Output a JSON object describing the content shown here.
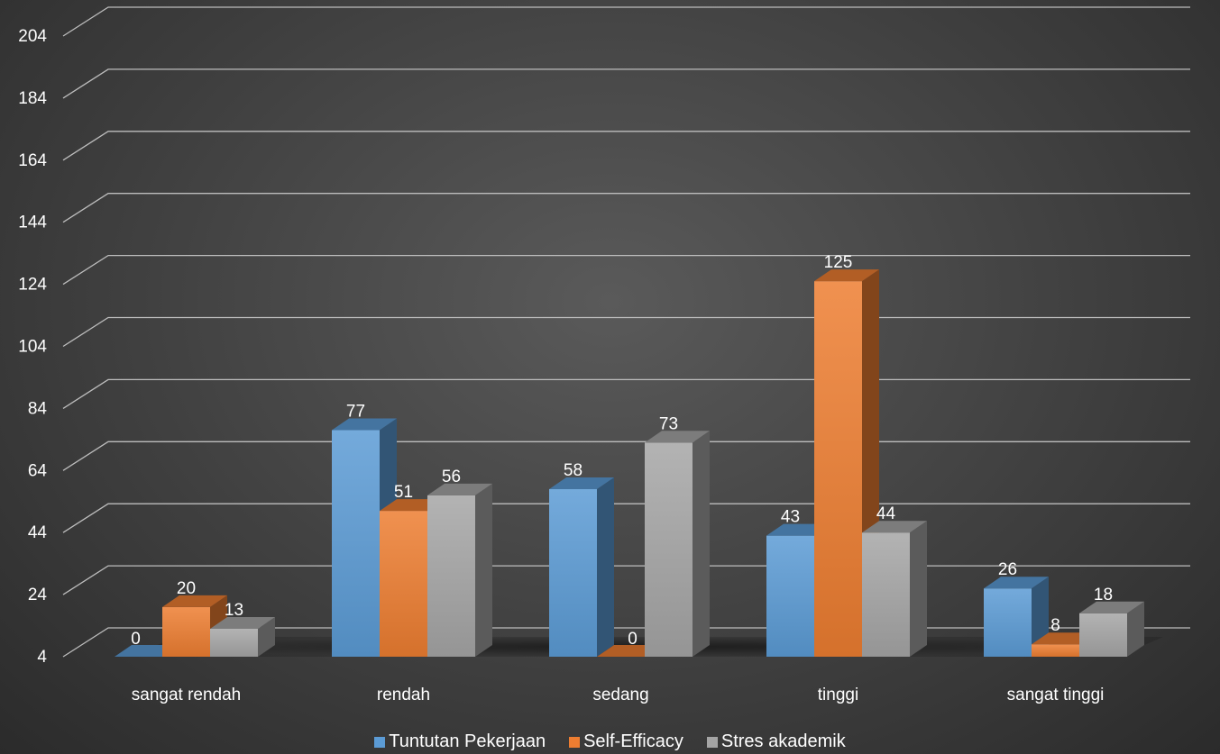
{
  "chart_data": {
    "type": "bar",
    "categories": [
      "sangat rendah",
      "rendah",
      "sedang",
      "tinggi",
      "sangat tinggi"
    ],
    "series": [
      {
        "name": "Tuntutan Pekerjaan",
        "values": [
          0,
          77,
          58,
          43,
          26
        ],
        "color": "#5b9bd5"
      },
      {
        "name": "Self-Efficacy",
        "values": [
          20,
          51,
          0,
          125,
          8
        ],
        "color": "#ed7d31"
      },
      {
        "name": "Stres akademik",
        "values": [
          13,
          56,
          73,
          44,
          18
        ],
        "color": "#a5a5a5"
      }
    ],
    "yticks": [
      4,
      24,
      44,
      64,
      84,
      104,
      124,
      144,
      164,
      184,
      204
    ],
    "ylim": [
      4,
      204
    ],
    "baseline_value": 4,
    "grid": true,
    "legend_position": "bottom",
    "title": "",
    "xlabel": "",
    "ylabel": ""
  }
}
